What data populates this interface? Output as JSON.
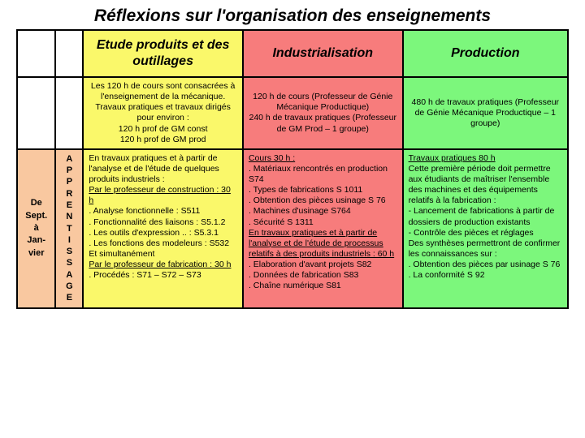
{
  "title": "Réflexions sur l'organisation des enseignements",
  "colors": {
    "col1_bg": "#f9c8a0",
    "col2_bg": "#f9c8a0",
    "col3_bg": "#faf86a",
    "col4_bg": "#f77c7c",
    "col5_bg": "#7cf77c"
  },
  "widths_pct": [
    7,
    5,
    29,
    29,
    30
  ],
  "header": {
    "c3": "Etude produits et des outillages",
    "c4": "Industrialisation",
    "c5": "Production"
  },
  "row2": {
    "c3": "Les 120 h de cours sont consacrées à l'enseignement de la mécanique.\nTravaux pratiques et travaux dirigés pour environ :\n120 h prof de GM  const\n120 h prof de GM prod",
    "c4": "120 h de cours (Professeur de Génie Mécanique Productique)\n240 h de travaux pratiques (Professeur de GM Prod – 1 groupe)",
    "c5": "480 h de travaux pratiques (Professeur de Génie Mécanique Productique – 1 groupe)"
  },
  "row3": {
    "c1": "De\nSept.\nà\nJan-\nvier",
    "c2": "A\nP\nP\nR\nE\nN\nT\nI\nS\nS\nA\nG\nE",
    "c3_pre": "En travaux pratiques et à partir de l'analyse et de l'étude de quelques produits industriels :",
    "c3_u1": "Par le professeur de construction : 30 h",
    "c3_l1": ". Analyse fonctionnelle : S511\n. Fonctionnalité des liaisons : S5.1.2\n. Les outils d'expression .. : S5.3.1\n. Les fonctions des modeleurs : S532\nEt simultanément",
    "c3_u2": "Par le professeur de fabrication : 30 h",
    "c3_l2": " . Procédés : S71 – S72 – S73",
    "c4_u1": "Cours 30 h :",
    "c4_l1": " . Matériaux rencontrés en production S74\n. Types de fabrications S 1011\n. Obtention des pièces usinage S 76\n. Machines d'usinage S764\n. Sécurité  S 1311",
    "c4_u2": "En travaux pratiques et à partir de l'analyse et de l'étude de processus relatifs à des produits industriels : 60 h",
    "c4_l2": " . Elaboration d'avant projets S82\n. Données de fabrication S83\n. Chaîne numérique  S81",
    "c5_u1": "Travaux pratiques 80 h",
    "c5_l1": "Cette première période doit permettre aux étudiants de maîtriser l'ensemble des machines et des équipements relatifs à la fabrication :\n- Lancement de fabrications à partir de dossiers de production existants\n- Contrôle des pièces et réglages\nDes synthèses permettront de confirmer les connaissances sur :\n. Obtention des pièces par usinage S 76\n. La conformité S 92"
  }
}
